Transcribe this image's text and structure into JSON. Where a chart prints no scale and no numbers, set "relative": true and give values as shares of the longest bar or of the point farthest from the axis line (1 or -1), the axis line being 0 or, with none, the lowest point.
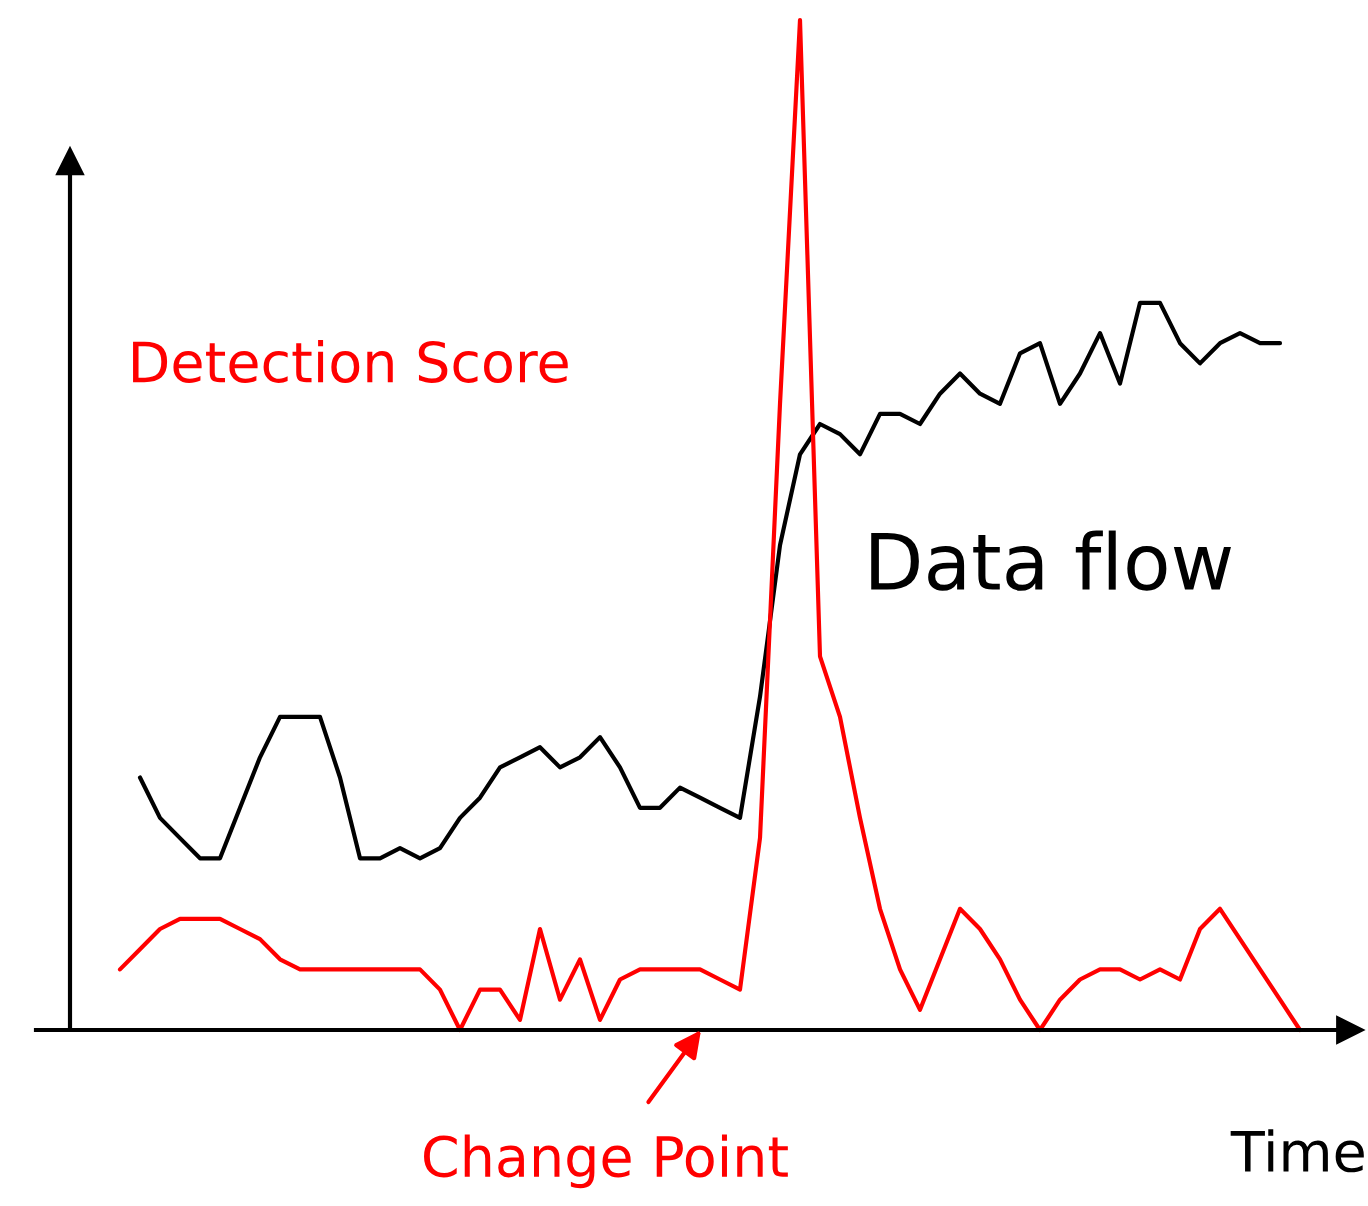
{
  "chart_data": {
    "type": "line",
    "relative": true,
    "xlabel": "Time",
    "legend": false,
    "categories": [
      null,
      null,
      null,
      null,
      null,
      null,
      null,
      null,
      null,
      null,
      null,
      null,
      null,
      null,
      null,
      null,
      null,
      null,
      null,
      null,
      null,
      null,
      null,
      null,
      null,
      null,
      null,
      null,
      null,
      null,
      null,
      null,
      null,
      null,
      null,
      null,
      null,
      null,
      null,
      null,
      null,
      null,
      null,
      null,
      null,
      null,
      null,
      null,
      null,
      null,
      null,
      null,
      null,
      null,
      null,
      null,
      null,
      null,
      null,
      null
    ],
    "series": [
      {
        "name": "Data flow",
        "color": "#000000",
        "values": [
          null,
          0.25,
          0.21,
          0.19,
          0.17,
          0.17,
          0.22,
          0.27,
          0.31,
          0.31,
          0.31,
          0.25,
          0.17,
          0.17,
          0.18,
          0.17,
          0.18,
          0.21,
          0.23,
          0.26,
          0.27,
          0.28,
          0.26,
          0.27,
          0.29,
          0.26,
          0.22,
          0.22,
          0.24,
          0.23,
          0.22,
          0.21,
          0.33,
          0.48,
          0.57,
          0.6,
          0.59,
          0.57,
          0.61,
          0.61,
          0.6,
          0.63,
          0.65,
          0.63,
          0.62,
          0.67,
          0.68,
          0.62,
          0.65,
          0.69,
          0.64,
          0.72,
          0.72,
          0.68,
          0.66,
          0.68,
          0.69,
          0.68,
          0.68,
          null
        ]
      },
      {
        "name": "Detection Score",
        "color": "#ff0000",
        "values": [
          0.06,
          0.08,
          0.1,
          0.11,
          0.11,
          0.11,
          0.1,
          0.09,
          0.07,
          0.06,
          0.06,
          0.06,
          0.06,
          0.06,
          0.06,
          0.06,
          0.04,
          0,
          0.04,
          0.04,
          0.01,
          0.1,
          0.03,
          0.07,
          0.01,
          0.05,
          0.06,
          0.06,
          0.06,
          0.06,
          0.05,
          0.04,
          0.19,
          0.62,
          1,
          0.37,
          0.31,
          0.21,
          0.12,
          0.06,
          0.02,
          0.07,
          0.12,
          0.1,
          0.07,
          0.03,
          0,
          0.03,
          0.05,
          0.06,
          0.06,
          0.05,
          0.06,
          0.05,
          0.1,
          0.12,
          0.09,
          0.06,
          0.03,
          0
        ]
      }
    ],
    "annotations": [
      "Change Point"
    ]
  }
}
